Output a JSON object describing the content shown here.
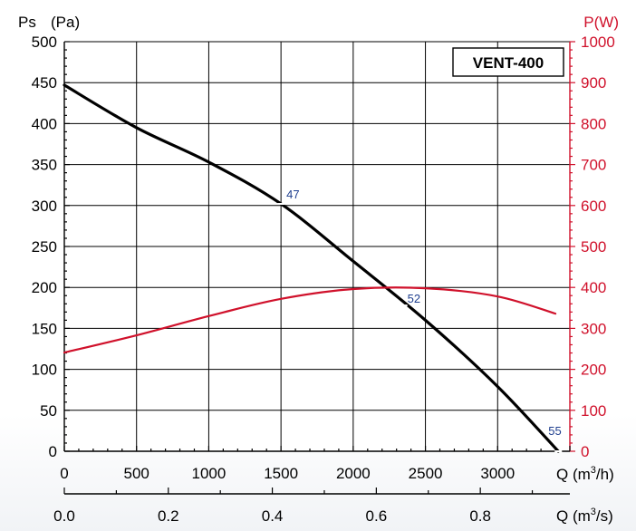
{
  "chart_data": {
    "type": "line",
    "title": "VENT-400",
    "y_left": {
      "label": "Ps",
      "unit": "(Pa)",
      "range": [
        0,
        500
      ],
      "ticks": [
        "0",
        "50",
        "100",
        "150",
        "200",
        "250",
        "300",
        "350",
        "400",
        "450",
        "500"
      ]
    },
    "y_right": {
      "label": "P(W)",
      "range": [
        0,
        1000
      ],
      "ticks": [
        "0",
        "100",
        "200",
        "300",
        "400",
        "500",
        "600",
        "700",
        "800",
        "900",
        "1000"
      ],
      "color": "#d0112b"
    },
    "x_primary": {
      "label": "Q (m",
      "label_sup": "3",
      "label_end": "/h)",
      "range": [
        0,
        3500
      ],
      "ticks": [
        "0",
        "500",
        "1000",
        "1500",
        "2000",
        "2500",
        "3000"
      ]
    },
    "x_secondary": {
      "label": "Q (m",
      "label_sup": "3",
      "label_end": "/s)",
      "ticks": [
        "0.0",
        "0.2",
        "0.4",
        "0.6",
        "0.8"
      ]
    },
    "grid": true,
    "series": [
      {
        "axis": "left",
        "color": "#000000",
        "x": [
          0,
          500,
          1000,
          1500,
          2000,
          2500,
          3000,
          3420
        ],
        "y": [
          447,
          395,
          353,
          302,
          232,
          160,
          79,
          0
        ]
      },
      {
        "axis": "right",
        "color": "#d0112b",
        "x": [
          0,
          500,
          1000,
          1500,
          2000,
          2500,
          3000,
          3400
        ],
        "y": [
          241,
          283,
          330,
          372,
          396,
          398,
          378,
          336
        ]
      }
    ],
    "point_labels": [
      {
        "text": "47",
        "x": 1500,
        "y": 302
      },
      {
        "text": "52",
        "x": 2350,
        "y": 178
      },
      {
        "text": "55",
        "x": 3420,
        "y": 0
      }
    ]
  }
}
